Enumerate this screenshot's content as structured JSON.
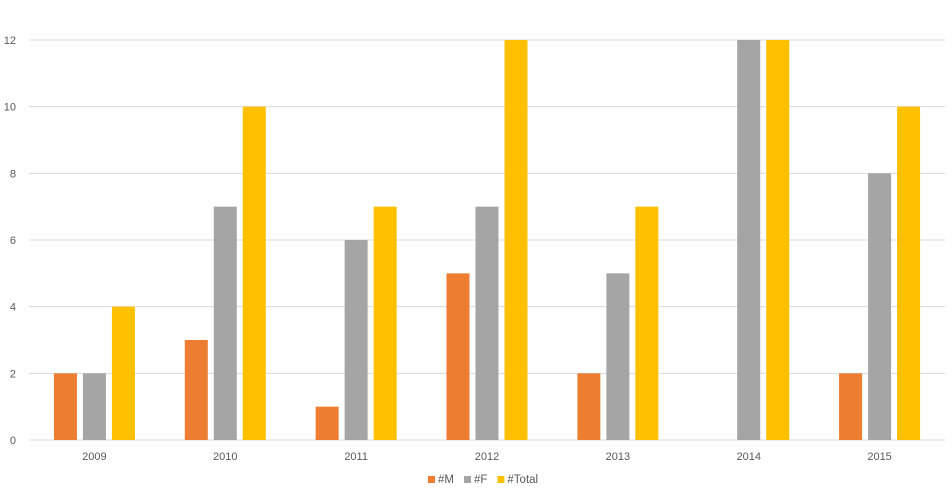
{
  "chart_data": {
    "type": "bar",
    "title": "",
    "xlabel": "",
    "ylabel": "",
    "categories": [
      "2009",
      "2010",
      "2011",
      "2012",
      "2013",
      "2014",
      "2015"
    ],
    "series": [
      {
        "name": "#M",
        "color": "#ED7D31",
        "values": [
          2,
          3,
          1,
          5,
          2,
          0,
          2
        ]
      },
      {
        "name": "#F",
        "color": "#A5A5A5",
        "values": [
          2,
          7,
          6,
          7,
          5,
          12,
          8
        ]
      },
      {
        "name": "#Total",
        "color": "#FFC000",
        "values": [
          4,
          10,
          7,
          12,
          7,
          12,
          10
        ]
      }
    ],
    "ylim": [
      0,
      12
    ],
    "yticks": [
      0,
      2,
      4,
      6,
      8,
      10,
      12
    ],
    "grid": true,
    "legend_position": "bottom-center"
  }
}
